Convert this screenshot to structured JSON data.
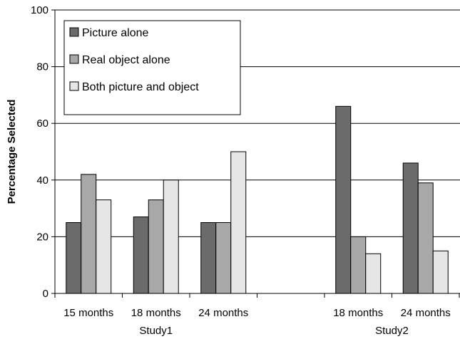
{
  "chart_data": {
    "type": "bar",
    "title": "",
    "xlabel": "",
    "ylabel": "Percentage Selected",
    "ylim": [
      0,
      100
    ],
    "yticks": [
      "0",
      "20",
      "40",
      "60",
      "80",
      "100"
    ],
    "grid": true,
    "legend_position": "top-left",
    "groups": [
      {
        "name": "Study1",
        "categories": [
          "15 months",
          "18 months",
          "24 months"
        ]
      },
      {
        "name": "Study2",
        "categories": [
          "18 months",
          "24 months"
        ]
      }
    ],
    "categories": [
      "15 months",
      "18 months",
      "24 months",
      "18 months",
      "24 months"
    ],
    "series": [
      {
        "name": "Picture alone",
        "color": "#6b6b6b",
        "values": [
          25,
          27,
          25,
          66,
          46
        ]
      },
      {
        "name": "Real object alone",
        "color": "#a8a8a8",
        "values": [
          42,
          33,
          25,
          20,
          39
        ]
      },
      {
        "name": "Both picture and object",
        "color": "#e6e6e6",
        "values": [
          33,
          40,
          50,
          14,
          15
        ]
      }
    ]
  }
}
